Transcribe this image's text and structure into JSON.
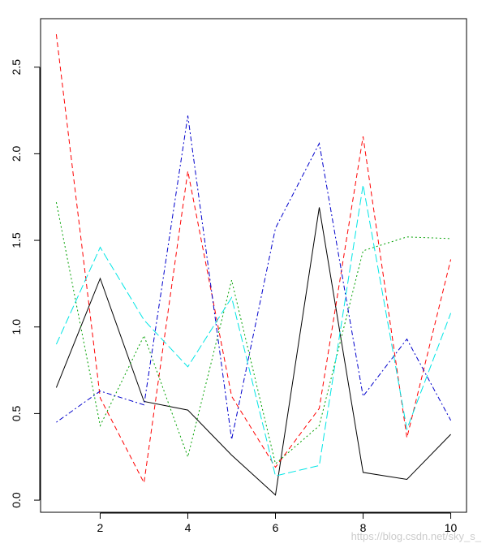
{
  "chart_data": {
    "type": "line",
    "title": "",
    "xlabel": "",
    "ylabel": "",
    "x": [
      1,
      2,
      3,
      4,
      5,
      6,
      7,
      8,
      9,
      10
    ],
    "xlim": [
      0.64,
      10.36
    ],
    "ylim": [
      -0.07,
      2.78
    ],
    "xticks": [
      2,
      4,
      6,
      8,
      10
    ],
    "yticks": [
      0.0,
      0.5,
      1.0,
      1.5,
      2.0,
      2.5
    ],
    "ytick_labels": [
      "0.0",
      "0.5",
      "1.0",
      "1.5",
      "2.0",
      "2.5"
    ],
    "xtick_labels": [
      "2",
      "4",
      "6",
      "8",
      "10"
    ],
    "grid": false,
    "series": [
      {
        "color": "#000000",
        "dash": "solid",
        "values": [
          0.65,
          1.28,
          0.57,
          0.52,
          0.26,
          0.03,
          1.69,
          0.16,
          0.12,
          0.38
        ]
      },
      {
        "color": "#ff0000",
        "dash": "dashed",
        "values": [
          2.69,
          0.59,
          0.1,
          1.9,
          0.6,
          0.19,
          0.53,
          2.1,
          0.36,
          1.39
        ]
      },
      {
        "color": "#00a000",
        "dash": "dotted",
        "values": [
          1.72,
          0.43,
          0.95,
          0.25,
          1.27,
          0.21,
          0.43,
          1.44,
          1.52,
          1.51
        ]
      },
      {
        "color": "#0000cc",
        "dash": "dotdash",
        "values": [
          0.45,
          0.63,
          0.55,
          2.22,
          0.35,
          1.57,
          2.06,
          0.6,
          0.93,
          0.46
        ]
      },
      {
        "color": "#00e5e5",
        "dash": "longdash",
        "values": [
          0.9,
          1.46,
          1.04,
          0.77,
          1.17,
          0.14,
          0.2,
          1.82,
          0.41,
          1.08
        ]
      }
    ]
  },
  "watermark": "https://blog.csdn.net/sky_s_"
}
